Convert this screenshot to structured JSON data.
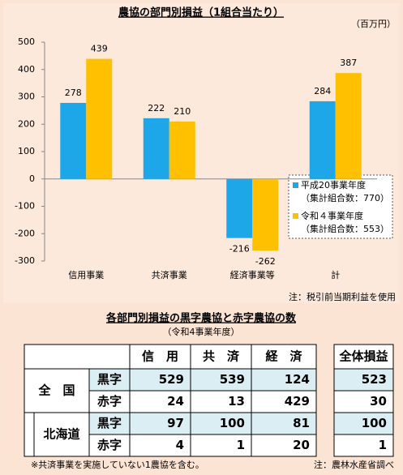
{
  "chart_data": {
    "type": "bar",
    "title": "農協の部門別損益（1組合当たり）",
    "unit": "（百万円）",
    "categories": [
      "信用事業",
      "共済事業",
      "経済事業等",
      "計"
    ],
    "series": [
      {
        "name": "平成20事業年度",
        "note": "（集計組合数：770）",
        "color": "#1ea7e8",
        "values": [
          278,
          222,
          -216,
          284
        ]
      },
      {
        "name": "令和４事業年度",
        "note": "（集計組合数：553）",
        "color": "#ffc000",
        "values": [
          439,
          210,
          -262,
          387
        ]
      }
    ],
    "ylim": [
      -300,
      500
    ],
    "yticks": [
      -300,
      -200,
      -100,
      0,
      100,
      200,
      300,
      400,
      500
    ],
    "note": "注：税引前当期利益を使用"
  },
  "table": {
    "title": "各部門別損益の黒字農協と赤字農協の数",
    "subtitle": "（令和4事業年度）",
    "header": [
      "信　用",
      "共　済",
      "経　済",
      "全体損益"
    ],
    "groups": [
      {
        "name": "全　国",
        "rows": [
          {
            "label": "黒字",
            "values": [
              529,
              539,
              124,
              523
            ]
          },
          {
            "label": "赤字",
            "values": [
              24,
              13,
              429,
              30
            ]
          }
        ]
      },
      {
        "name": "北海道",
        "rows": [
          {
            "label": "黒字",
            "values": [
              97,
              100,
              81,
              100
            ]
          },
          {
            "label": "赤字",
            "values": [
              4,
              1,
              20,
              1
            ]
          }
        ]
      }
    ],
    "footnote": "※共済事業を実施していない1農協を含む。",
    "source": "注：農林水産省調べ"
  }
}
